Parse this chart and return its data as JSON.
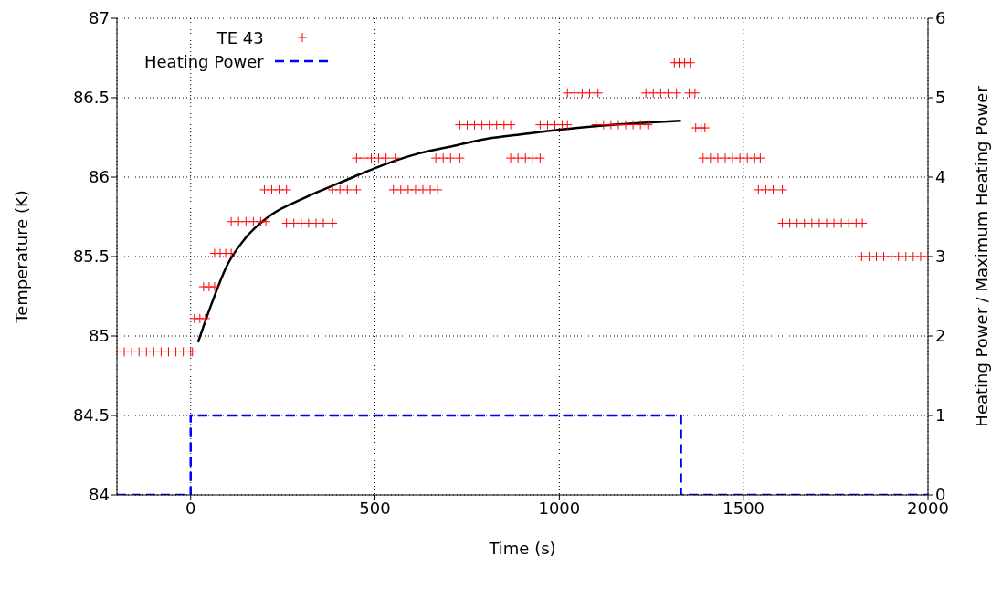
{
  "chart_data": {
    "type": "scatter",
    "xlabel": "Time (s)",
    "ylabel": "Temperature (K)",
    "y2label": "Heating Power / Maximum Heating Power",
    "xlim": [
      -200,
      2000
    ],
    "xticks": [
      0,
      500,
      1000,
      1500,
      2000
    ],
    "ylim": [
      84,
      87
    ],
    "yticks": [
      84,
      84.5,
      85,
      85.5,
      86,
      86.5,
      87
    ],
    "y2lim": [
      0,
      6
    ],
    "y2ticks": [
      0,
      1,
      2,
      3,
      4,
      5,
      6
    ],
    "grid": true,
    "legend": "top left",
    "series": [
      {
        "name": "TE 43",
        "marker": "cross",
        "color": "#ff0000",
        "x": [
          -200,
          -180,
          -160,
          -140,
          -120,
          -100,
          -80,
          -60,
          -40,
          -20,
          0,
          5,
          10,
          25,
          40,
          35,
          50,
          65,
          65,
          80,
          95,
          110,
          110,
          130,
          150,
          170,
          190,
          204,
          200,
          220,
          240,
          260,
          260,
          280,
          300,
          320,
          340,
          360,
          385,
          385,
          405,
          425,
          450,
          450,
          470,
          490,
          510,
          530,
          555,
          550,
          570,
          590,
          610,
          630,
          650,
          670,
          665,
          685,
          705,
          730,
          730,
          750,
          770,
          790,
          810,
          830,
          850,
          868,
          868,
          888,
          908,
          928,
          948,
          948,
          968,
          988,
          1008,
          1022,
          1022,
          1042,
          1062,
          1082,
          1105,
          1100,
          1120,
          1140,
          1160,
          1180,
          1200,
          1220,
          1240,
          1235,
          1255,
          1275,
          1295,
          1318,
          1312,
          1325,
          1340,
          1355,
          1352,
          1368,
          1370,
          1385,
          1395,
          1390,
          1410,
          1430,
          1450,
          1470,
          1490,
          1510,
          1530,
          1545,
          1540,
          1560,
          1580,
          1605,
          1605,
          1625,
          1645,
          1665,
          1685,
          1705,
          1725,
          1745,
          1765,
          1785,
          1805,
          1822,
          1820,
          1840,
          1860,
          1880,
          1900,
          1920,
          1940,
          1960,
          1980,
          2000
        ],
        "values": [
          84.9,
          84.9,
          84.9,
          84.9,
          84.9,
          84.9,
          84.9,
          84.9,
          84.9,
          84.9,
          84.9,
          84.9,
          85.11,
          85.11,
          85.11,
          85.31,
          85.31,
          85.31,
          85.52,
          85.52,
          85.52,
          85.52,
          85.72,
          85.72,
          85.72,
          85.72,
          85.72,
          85.72,
          85.92,
          85.92,
          85.92,
          85.92,
          85.71,
          85.71,
          85.71,
          85.71,
          85.71,
          85.71,
          85.71,
          85.92,
          85.92,
          85.92,
          85.92,
          86.12,
          86.12,
          86.12,
          86.12,
          86.12,
          86.12,
          85.92,
          85.92,
          85.92,
          85.92,
          85.92,
          85.92,
          85.92,
          86.12,
          86.12,
          86.12,
          86.12,
          86.33,
          86.33,
          86.33,
          86.33,
          86.33,
          86.33,
          86.33,
          86.33,
          86.12,
          86.12,
          86.12,
          86.12,
          86.12,
          86.33,
          86.33,
          86.33,
          86.33,
          86.33,
          86.53,
          86.53,
          86.53,
          86.53,
          86.53,
          86.33,
          86.33,
          86.33,
          86.33,
          86.33,
          86.33,
          86.33,
          86.33,
          86.53,
          86.53,
          86.53,
          86.53,
          86.53,
          86.72,
          86.72,
          86.72,
          86.72,
          86.53,
          86.53,
          86.31,
          86.31,
          86.31,
          86.12,
          86.12,
          86.12,
          86.12,
          86.12,
          86.12,
          86.12,
          86.12,
          86.12,
          85.92,
          85.92,
          85.92,
          85.92,
          85.71,
          85.71,
          85.71,
          85.71,
          85.71,
          85.71,
          85.71,
          85.71,
          85.71,
          85.71,
          85.71,
          85.71,
          85.5,
          85.5,
          85.5,
          85.5,
          85.5,
          85.5,
          85.5,
          85.5,
          85.5,
          85.5
        ]
      },
      {
        "type": "line",
        "color": "#000000",
        "x": [
          20,
          50,
          100,
          150,
          223,
          300,
          348,
          400,
          472,
          550,
          620,
          720,
          800,
          900,
          968,
          1050,
          1150,
          1217,
          1330
        ],
        "values": [
          84.96,
          85.16,
          85.45,
          85.62,
          85.77,
          85.86,
          85.91,
          85.96,
          86.03,
          86.1,
          86.15,
          86.2,
          86.24,
          86.27,
          86.29,
          86.31,
          86.33,
          86.34,
          86.355
        ]
      },
      {
        "name": "Heating Power",
        "type": "step",
        "axis": "y2",
        "line_style": "dashed",
        "color": "#0000ff",
        "x": [
          -200,
          0,
          1330,
          2000
        ],
        "values": [
          0,
          1,
          0,
          0
        ]
      }
    ]
  }
}
